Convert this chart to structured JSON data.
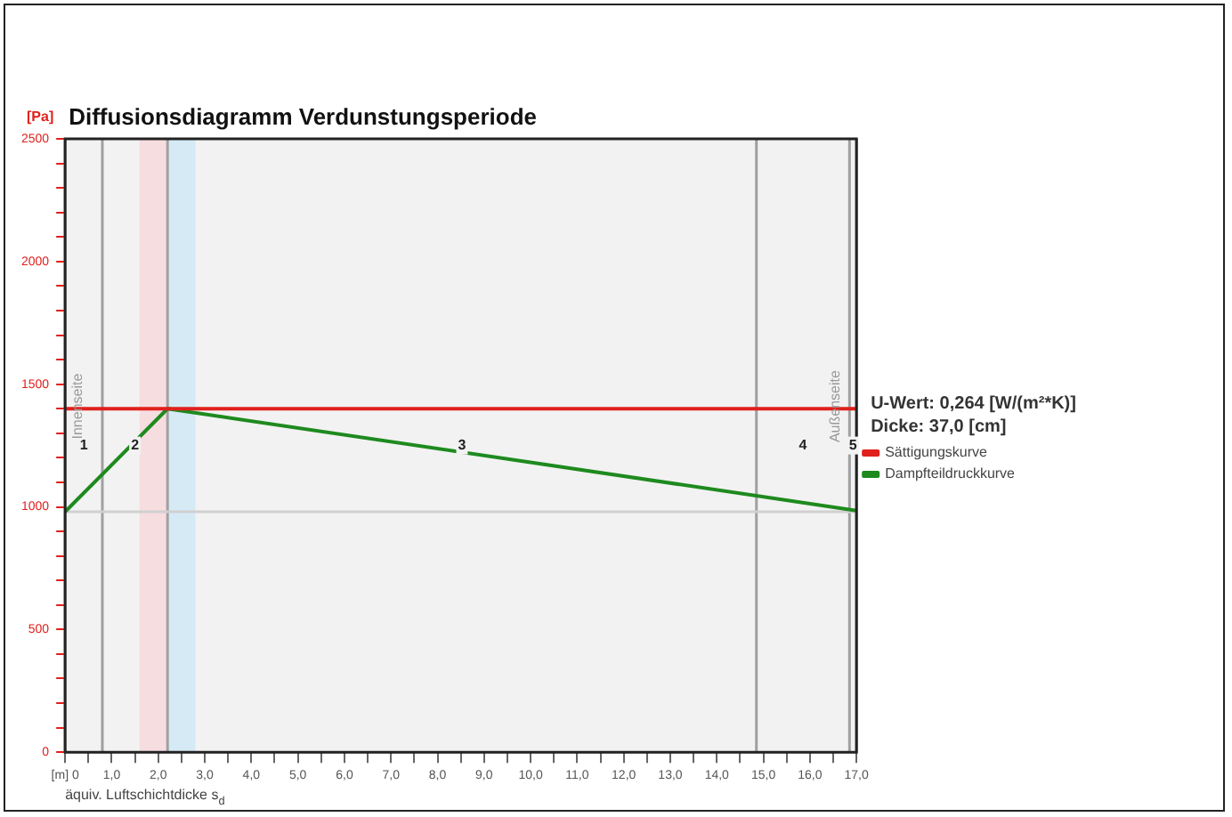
{
  "chart_data": {
    "type": "line",
    "title": "Diffusionsdiagramm Verdunstungsperiode",
    "ylabel": "[Pa]",
    "xlabel": "äquiv. Luftschichtdicke s$_{d}$",
    "series": [
      {
        "name": "Sättigungskurve",
        "color": "#e0201c",
        "x": [
          0,
          17
        ],
        "values": [
          1400,
          1400
        ]
      },
      {
        "name": "Dampfteildruckkurve",
        "color": "#1e8a1e",
        "x": [
          0,
          2.2,
          17
        ],
        "values": [
          980,
          1400,
          985
        ]
      }
    ],
    "xlim": [
      0,
      17
    ],
    "ylim": [
      0,
      2500
    ],
    "xticks": [
      {
        "value": 0,
        "label": "[m] 0"
      },
      {
        "value": 0.5,
        "label": null
      },
      {
        "value": 1,
        "label": "1,0"
      },
      {
        "value": 1.5,
        "label": null
      },
      {
        "value": 2,
        "label": "2,0"
      },
      {
        "value": 2.5,
        "label": null
      },
      {
        "value": 3,
        "label": "3,0"
      },
      {
        "value": 3.5,
        "label": null
      },
      {
        "value": 4,
        "label": "4,0"
      },
      {
        "value": 4.5,
        "label": null
      },
      {
        "value": 5,
        "label": "5,0"
      },
      {
        "value": 5.5,
        "label": null
      },
      {
        "value": 6,
        "label": "6,0"
      },
      {
        "value": 6.5,
        "label": null
      },
      {
        "value": 7,
        "label": "7,0"
      },
      {
        "value": 7.5,
        "label": null
      },
      {
        "value": 8,
        "label": "8,0"
      },
      {
        "value": 8.5,
        "label": null
      },
      {
        "value": 9,
        "label": "9,0"
      },
      {
        "value": 9.5,
        "label": null
      },
      {
        "value": 10,
        "label": "10,0"
      },
      {
        "value": 10.5,
        "label": null
      },
      {
        "value": 11,
        "label": "11,0"
      },
      {
        "value": 11.5,
        "label": null
      },
      {
        "value": 12,
        "label": "12,0"
      },
      {
        "value": 12.5,
        "label": null
      },
      {
        "value": 13,
        "label": "13,0"
      },
      {
        "value": 13.5,
        "label": null
      },
      {
        "value": 14,
        "label": "14,0"
      },
      {
        "value": 14.5,
        "label": null
      },
      {
        "value": 15,
        "label": "15,0"
      },
      {
        "value": 15.5,
        "label": null
      },
      {
        "value": 16,
        "label": "16,0"
      },
      {
        "value": 16.5,
        "label": null
      },
      {
        "value": 17,
        "label": "17,0"
      }
    ],
    "yticks": [
      0,
      {
        "value": 100,
        "label": null
      },
      {
        "value": 200,
        "label": null
      },
      {
        "value": 300,
        "label": null
      },
      {
        "value": 400,
        "label": null
      },
      500,
      {
        "value": 600,
        "label": null
      },
      {
        "value": 700,
        "label": null
      },
      {
        "value": 800,
        "label": null
      },
      {
        "value": 900,
        "label": null
      },
      1000,
      {
        "value": 1100,
        "label": null
      },
      {
        "value": 1200,
        "label": null
      },
      {
        "value": 1300,
        "label": null
      },
      {
        "value": 1400,
        "label": null
      },
      1500,
      {
        "value": 1600,
        "label": null
      },
      {
        "value": 1700,
        "label": null
      },
      {
        "value": 1800,
        "label": null
      },
      {
        "value": 1900,
        "label": null
      },
      2000,
      {
        "value": 2100,
        "label": null
      },
      {
        "value": 2200,
        "label": null
      },
      {
        "value": 2300,
        "label": null
      },
      {
        "value": 2400,
        "label": null
      },
      2500
    ],
    "ref_lines": [
      {
        "axis": "x",
        "value": 0,
        "color": "#a0a0a0",
        "label": "Innenseite"
      },
      {
        "axis": "x",
        "value": 17,
        "color": "#a0a0a0",
        "label": "Außenseite"
      },
      {
        "axis": "x",
        "value": 0.8,
        "color": "#a0a0a0"
      },
      {
        "axis": "x",
        "value": 2.2,
        "color": "#a0a0a0"
      },
      {
        "axis": "x",
        "value": 14.85,
        "color": "#a0a0a0"
      },
      {
        "axis": "x",
        "value": 16.85,
        "color": "#a0a0a0"
      },
      {
        "axis": "y",
        "value": 980,
        "color": "#d0d0d0"
      }
    ],
    "bands": [
      {
        "axis": "x",
        "from": 0,
        "to": 0.8,
        "label": "1",
        "color": "#f2f2f2"
      },
      {
        "axis": "x",
        "from": 0.8,
        "to": 2.2,
        "label": "2",
        "color": "#f2f2f2"
      },
      {
        "axis": "x",
        "from": 2.2,
        "to": 14.85,
        "label": "3",
        "color": "#f2f2f2"
      },
      {
        "axis": "x",
        "from": 14.85,
        "to": 16.85,
        "label": "4",
        "color": "#f2f2f2"
      },
      {
        "axis": "x",
        "from": 16.85,
        "to": 17,
        "label": "5",
        "color": "#f2f2f2"
      },
      {
        "axis": "x",
        "from": 1.6,
        "to": 2.2,
        "color": "#f6dde0"
      },
      {
        "axis": "x",
        "from": 2.2,
        "to": 2.8,
        "color": "#d6eaf6"
      }
    ],
    "annotations": [
      "U-Wert: 0,264 [W/(m²*K)]",
      "Dicke: 37,0 [cm]"
    ],
    "legend": "right"
  }
}
